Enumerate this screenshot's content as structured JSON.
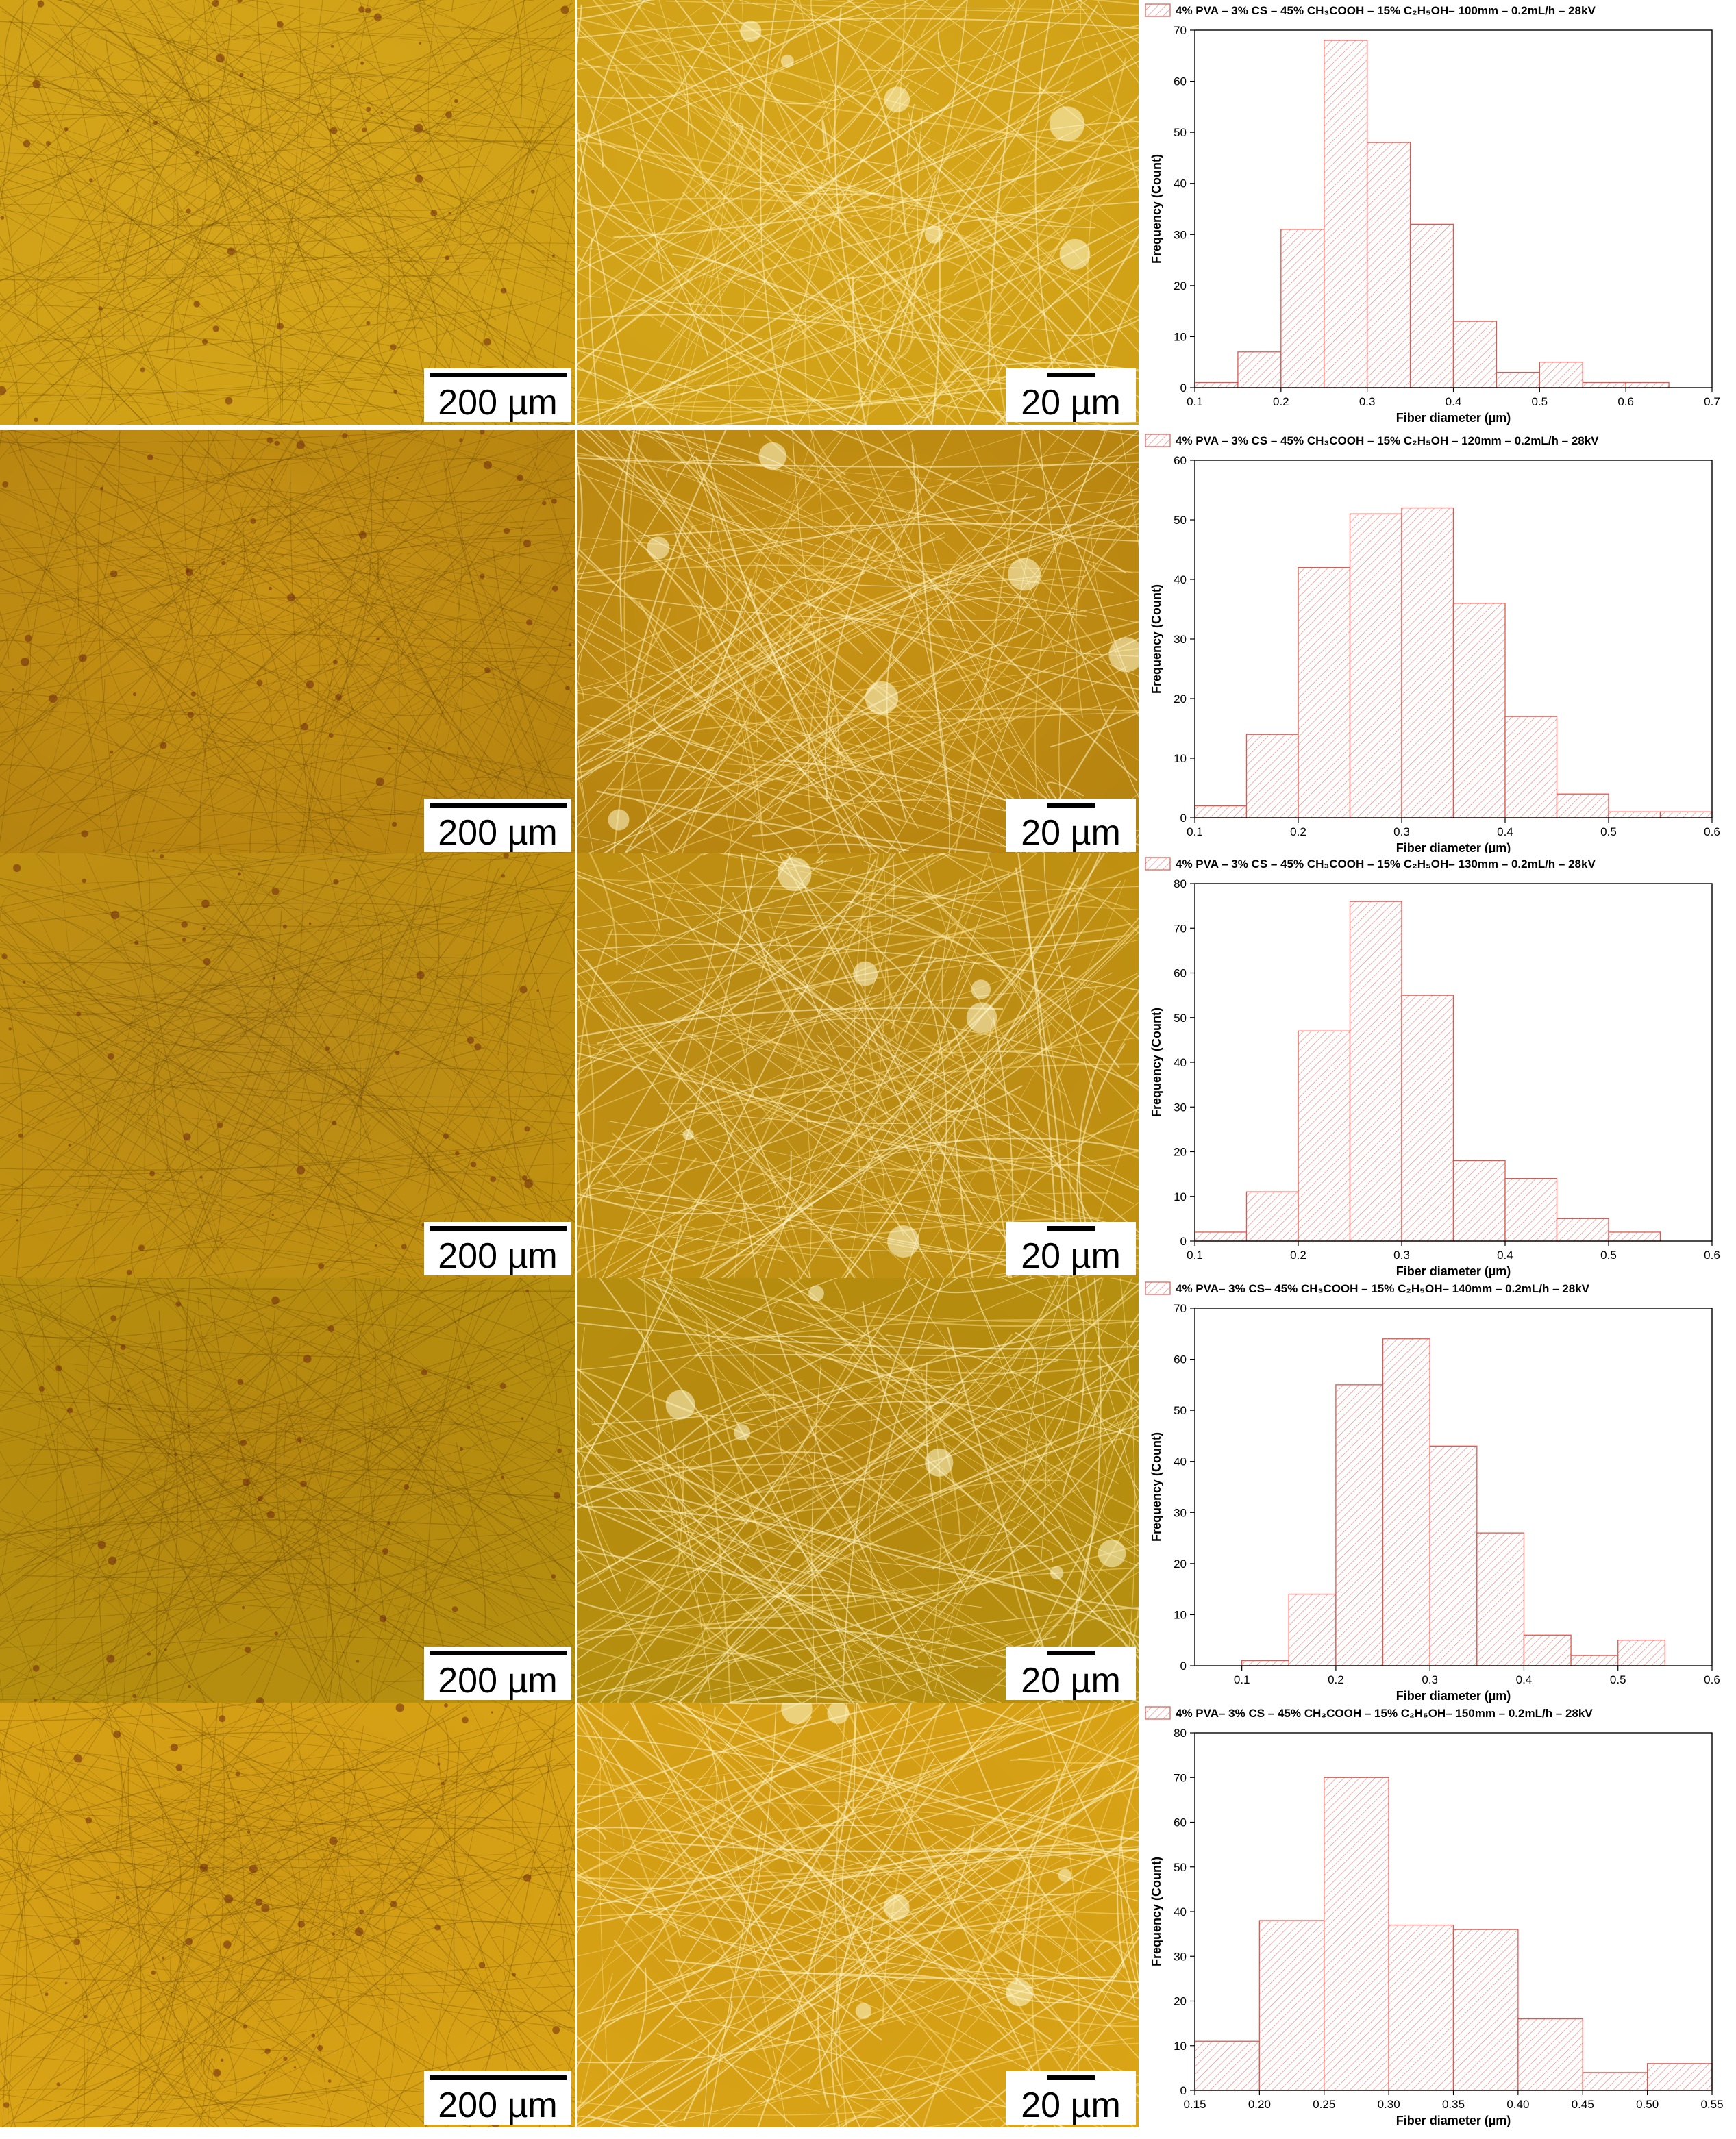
{
  "colors": {
    "bar_stroke": "#e0574f",
    "bar_hatch": "#e98b84",
    "micro_base": [
      "#cfa015",
      "#b3820f",
      "#c1920f",
      "#b5910f",
      "#dba516"
    ],
    "micro_fine": [
      "#d6a51b",
      "#c99415",
      "#b98a16",
      "#b6870f",
      "#cf9a14"
    ]
  },
  "panels": [
    {
      "low_mag_scale": "200 µm",
      "high_mag_scale": "20 µm",
      "chart_data": {
        "type": "bar",
        "legend": "4% PVA – 3% CS – 45% CH₃COOH – 15% C₂H₅OH– 100mm – 0.2mL/h – 28kV",
        "xlabel": "Fiber diameter (µm)",
        "ylabel": "Frequency (Count)",
        "xlim": [
          0.1,
          0.7
        ],
        "ylim": [
          0,
          70
        ],
        "xticks": [
          "0.1",
          "0.2",
          "0.3",
          "0.4",
          "0.5",
          "0.6",
          "0.7"
        ],
        "yticks": [
          "0",
          "10",
          "20",
          "30",
          "40",
          "50",
          "60",
          "70"
        ],
        "bin_edges": [
          0.1,
          0.15,
          0.2,
          0.25,
          0.3,
          0.35,
          0.4,
          0.45,
          0.5,
          0.55,
          0.6,
          0.65
        ],
        "values": [
          1,
          7,
          31,
          68,
          48,
          32,
          13,
          3,
          5,
          1,
          1
        ]
      }
    },
    {
      "low_mag_scale": "200 µm",
      "high_mag_scale": "20 µm",
      "chart_data": {
        "type": "bar",
        "legend": "4% PVA – 3% CS – 45% CH₃COOH – 15% C₂H₅OH – 120mm – 0.2mL/h – 28kV",
        "xlabel": "Fiber diameter (µm)",
        "ylabel": "Frequency (Count)",
        "xlim": [
          0.1,
          0.6
        ],
        "ylim": [
          0,
          60
        ],
        "xticks": [
          "0.1",
          "0.2",
          "0.3",
          "0.4",
          "0.5",
          "0.6"
        ],
        "yticks": [
          "0",
          "10",
          "20",
          "30",
          "40",
          "50",
          "60"
        ],
        "bin_edges": [
          0.1,
          0.15,
          0.2,
          0.25,
          0.3,
          0.35,
          0.4,
          0.45,
          0.5,
          0.55,
          0.6
        ],
        "values": [
          2,
          14,
          42,
          51,
          52,
          36,
          17,
          4,
          1,
          1
        ]
      }
    },
    {
      "low_mag_scale": "200 µm",
      "high_mag_scale": "20 µm",
      "chart_data": {
        "type": "bar",
        "legend": "4% PVA – 3% CS – 45% CH₃COOH – 15% C₂H₅OH– 130mm – 0.2mL/h – 28kV",
        "xlabel": "Fiber diameter (µm)",
        "ylabel": "Frequency (Count)",
        "xlim": [
          0.1,
          0.6
        ],
        "ylim": [
          0,
          80
        ],
        "xticks": [
          "0.1",
          "0.2",
          "0.3",
          "0.4",
          "0.5",
          "0.6"
        ],
        "yticks": [
          "0",
          "10",
          "20",
          "30",
          "40",
          "50",
          "60",
          "70",
          "80"
        ],
        "bin_edges": [
          0.1,
          0.15,
          0.2,
          0.25,
          0.3,
          0.35,
          0.4,
          0.45,
          0.5,
          0.55
        ],
        "values": [
          2,
          11,
          47,
          76,
          55,
          18,
          14,
          5,
          2
        ]
      }
    },
    {
      "low_mag_scale": "200 µm",
      "high_mag_scale": "20 µm",
      "chart_data": {
        "type": "bar",
        "legend": "4% PVA– 3% CS– 45% CH₃COOH – 15% C₂H₅OH– 140mm – 0.2mL/h – 28kV",
        "xlabel": "Fiber diameter (µm)",
        "ylabel": "Frequency (Count)",
        "xlim": [
          0.05,
          0.6
        ],
        "ylim": [
          0,
          70
        ],
        "xticks": [
          "0.1",
          "0.2",
          "0.3",
          "0.4",
          "0.5",
          "0.6"
        ],
        "yticks": [
          "0",
          "10",
          "20",
          "30",
          "40",
          "50",
          "60",
          "70"
        ],
        "bin_edges": [
          0.1,
          0.15,
          0.2,
          0.25,
          0.3,
          0.35,
          0.4,
          0.45,
          0.5,
          0.55
        ],
        "values": [
          1,
          14,
          55,
          64,
          43,
          26,
          6,
          2,
          5
        ]
      }
    },
    {
      "low_mag_scale": "200 µm",
      "high_mag_scale": "20 µm",
      "chart_data": {
        "type": "bar",
        "legend": "4% PVA– 3% CS – 45% CH₃COOH – 15% C₂H₅OH– 150mm – 0.2mL/h – 28kV",
        "xlabel": "Fiber diameter (µm)",
        "ylabel": "Frequency (Count)",
        "xlim": [
          0.15,
          0.55
        ],
        "ylim": [
          0,
          80
        ],
        "xticks": [
          "0.15",
          "0.20",
          "0.25",
          "0.30",
          "0.35",
          "0.40",
          "0.45",
          "0.50",
          "0.55"
        ],
        "yticks": [
          "0",
          "10",
          "20",
          "30",
          "40",
          "50",
          "60",
          "70",
          "80"
        ],
        "bin_edges": [
          0.15,
          0.2,
          0.25,
          0.3,
          0.35,
          0.4,
          0.45,
          0.5,
          0.55
        ],
        "values": [
          11,
          38,
          70,
          37,
          36,
          16,
          4,
          6
        ]
      }
    }
  ]
}
